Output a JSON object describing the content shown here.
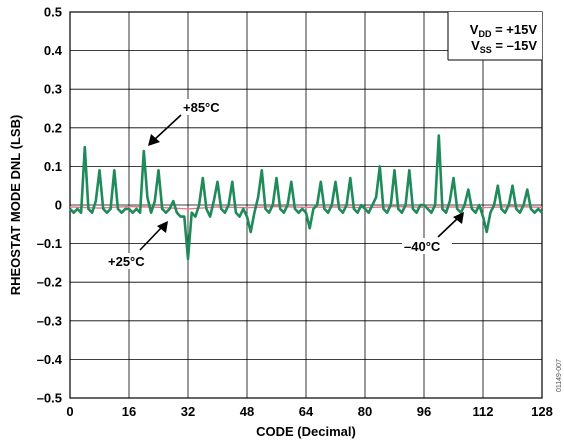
{
  "chart_data": {
    "type": "line",
    "xlabel": "CODE (Decimal)",
    "ylabel": "RHEOSTAT MODE DNL (LSB)",
    "xlim": [
      0,
      128
    ],
    "ylim": [
      -0.5,
      0.5
    ],
    "xticks": [
      "0",
      "16",
      "32",
      "48",
      "64",
      "80",
      "96",
      "112",
      "128"
    ],
    "yticks": [
      "0.5",
      "0.4",
      "0.3",
      "0.2",
      "0.1",
      "0",
      "–0.1",
      "–0.2",
      "–0.3",
      "–0.4",
      "–0.5"
    ],
    "grid": true,
    "legend_box": {
      "vdd_label": "V",
      "vdd_sub": "DD",
      "vdd_value": " = +15V",
      "vss_label": "V",
      "vss_sub": "SS",
      "vss_value": " = –15V"
    },
    "annotations": {
      "t85": "+85°C",
      "t25": "+25°C",
      "tm40": "–40°C"
    },
    "figure_id": "01149-007",
    "series": [
      {
        "color": "#1f8a5a",
        "x": [
          0,
          1,
          2,
          3,
          4,
          5,
          6,
          7,
          8,
          9,
          10,
          11,
          12,
          13,
          14,
          15,
          16,
          17,
          18,
          19,
          20,
          21,
          22,
          23,
          24,
          25,
          26,
          27,
          28,
          29,
          30,
          31,
          32,
          33,
          34,
          35,
          36,
          37,
          38,
          39,
          40,
          41,
          42,
          43,
          44,
          45,
          46,
          47,
          48,
          49,
          50,
          51,
          52,
          53,
          54,
          55,
          56,
          57,
          58,
          59,
          60,
          61,
          62,
          63,
          64,
          65,
          66,
          67,
          68,
          69,
          70,
          71,
          72,
          73,
          74,
          75,
          76,
          77,
          78,
          79,
          80,
          81,
          82,
          83,
          84,
          85,
          86,
          87,
          88,
          89,
          90,
          91,
          92,
          93,
          94,
          95,
          96,
          97,
          98,
          99,
          100,
          101,
          102,
          103,
          104,
          105,
          106,
          107,
          108,
          109,
          110,
          111,
          112,
          113,
          114,
          115,
          116,
          117,
          118,
          119,
          120,
          121,
          122,
          123,
          124,
          125,
          126,
          127,
          128
        ],
        "values": [
          -0.01,
          -0.02,
          -0.01,
          -0.02,
          0.15,
          -0.01,
          -0.02,
          0.01,
          0.09,
          -0.01,
          -0.02,
          -0.01,
          0.09,
          -0.01,
          -0.02,
          -0.01,
          -0.01,
          -0.02,
          -0.01,
          -0.02,
          0.14,
          0.02,
          -0.02,
          0.01,
          0.09,
          -0.01,
          -0.02,
          -0.01,
          0.01,
          -0.02,
          -0.03,
          -0.03,
          -0.14,
          -0.02,
          -0.03,
          0.0,
          0.07,
          -0.01,
          -0.03,
          0.01,
          0.06,
          -0.01,
          -0.02,
          0.0,
          0.06,
          -0.02,
          -0.03,
          -0.01,
          -0.03,
          -0.07,
          -0.02,
          0.02,
          0.09,
          -0.01,
          -0.02,
          0.0,
          0.07,
          -0.01,
          -0.02,
          0.0,
          0.06,
          -0.01,
          -0.02,
          -0.01,
          -0.02,
          -0.06,
          -0.01,
          0.0,
          0.06,
          -0.01,
          -0.02,
          0.0,
          0.06,
          -0.01,
          -0.02,
          0.0,
          0.07,
          -0.01,
          -0.02,
          0.0,
          -0.01,
          -0.02,
          0.0,
          0.02,
          0.1,
          -0.01,
          -0.02,
          0.0,
          0.09,
          -0.01,
          -0.02,
          0.0,
          0.09,
          -0.01,
          -0.02,
          0.0,
          0.0,
          -0.01,
          -0.02,
          0.0,
          0.18,
          -0.01,
          -0.02,
          0.01,
          0.07,
          -0.01,
          -0.02,
          0.0,
          0.04,
          -0.01,
          -0.02,
          0.0,
          -0.03,
          -0.07,
          -0.02,
          0.0,
          0.05,
          -0.01,
          -0.02,
          0.0,
          0.05,
          -0.01,
          -0.02,
          0.0,
          0.04,
          -0.01,
          -0.02,
          -0.01,
          -0.02
        ]
      },
      {
        "color": "#e07b8a",
        "x": [
          0,
          8,
          16,
          24,
          32,
          40,
          48,
          56,
          64,
          72,
          80,
          88,
          96,
          104,
          112,
          120,
          128
        ],
        "values": [
          -0.005,
          -0.008,
          -0.004,
          -0.006,
          -0.01,
          -0.005,
          -0.007,
          -0.004,
          -0.006,
          -0.005,
          -0.007,
          -0.004,
          -0.006,
          -0.005,
          -0.007,
          -0.004,
          -0.006
        ]
      }
    ]
  }
}
